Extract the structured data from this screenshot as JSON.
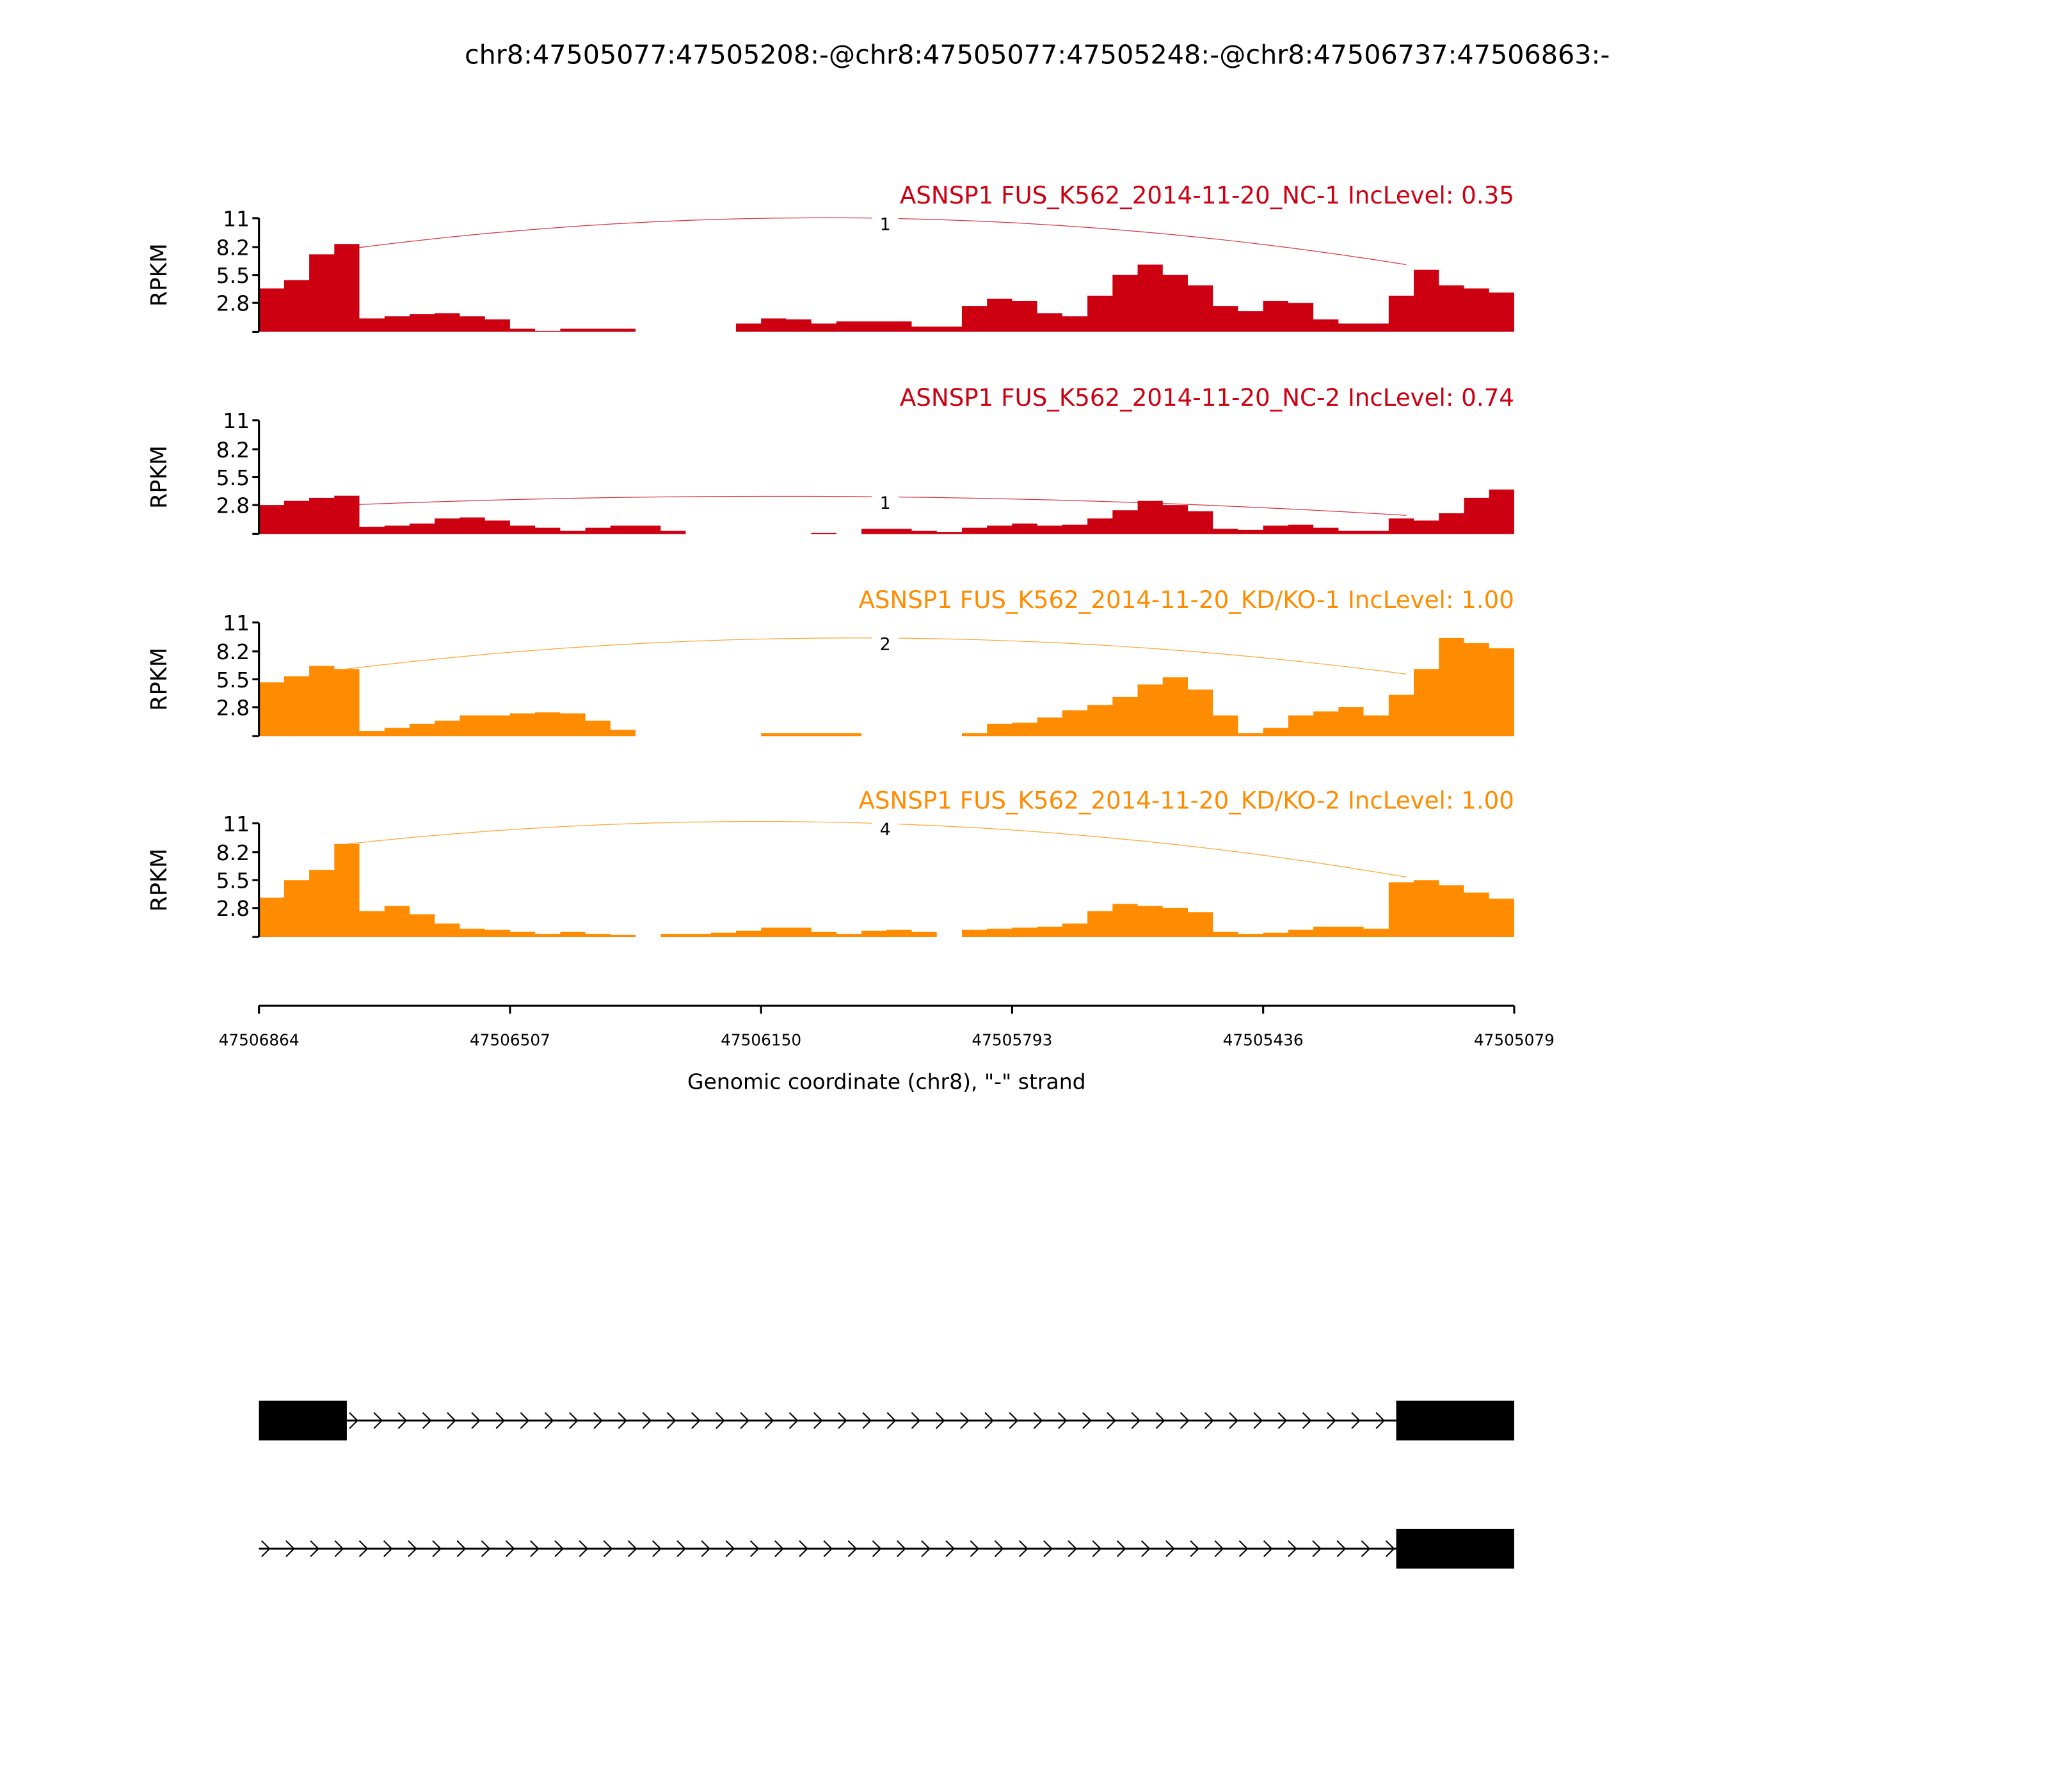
{
  "title": "chr8:47505077:47505208:-@chr8:47505077:47505248:-@chr8:47506737:47506863:-",
  "chart_data": {
    "type": "area",
    "title": "chr8:47505077:47505208:-@chr8:47505077:47505248:-@chr8:47506737:47506863:-",
    "xlabel": "Genomic coordinate (chr8), \"-\" strand",
    "x_range": [
      47506864,
      47505079
    ],
    "x_ticks": [
      "47506864",
      "47506507",
      "47506150",
      "47505793",
      "47505436",
      "47505079"
    ],
    "bin_size_bp": 35.7,
    "ylabel": "RPKM",
    "ylim": [
      0,
      11
    ],
    "y_ticks": [
      "11",
      "8.2",
      "5.5",
      "2.8"
    ],
    "y_tick_values": [
      11,
      8.2,
      5.5,
      2.8
    ],
    "tracks": [
      {
        "label": "ASNSP1 FUS_K562_2014-11-20_NC-1 IncLevel: 0.35",
        "color": "#cc0011",
        "junction_counts": [
          "1"
        ],
        "junction_ends_bin": [
          45.2
        ],
        "junction_heights": [
          [
            8,
            11,
            6.5
          ]
        ],
        "values": [
          4.2,
          5,
          7.5,
          8.5,
          1.3,
          1.5,
          1.7,
          1.8,
          1.5,
          1.2,
          0.3,
          0.1,
          0.3,
          0.3,
          0.3,
          0,
          0,
          0,
          0,
          0.8,
          1.3,
          1.2,
          0.8,
          1.0,
          1.0,
          1.0,
          0.5,
          0.5,
          2.5,
          3.2,
          3.0,
          1.8,
          1.5,
          3.5,
          5.5,
          6.5,
          5.5,
          4.5,
          2.5,
          2.0,
          3.0,
          2.8,
          1.2,
          0.8,
          0.8,
          3.5,
          6,
          4.5,
          4.2,
          3.8
        ]
      },
      {
        "label": "ASNSP1 FUS_K562_2014-11-20_NC-2 IncLevel: 0.74",
        "color": "#cc0011",
        "junction_counts": [
          "1"
        ],
        "junction_ends_bin": [
          45.2
        ],
        "junction_heights": [
          [
            2.8,
            3.6,
            1.8
          ]
        ],
        "values": [
          2.8,
          3.2,
          3.5,
          3.7,
          0.7,
          0.8,
          1,
          1.5,
          1.6,
          1.3,
          0.8,
          0.6,
          0.3,
          0.6,
          0.8,
          0.8,
          0.3,
          0,
          0,
          0,
          0,
          0,
          0.1,
          0,
          0.5,
          0.5,
          0.3,
          0.2,
          0.6,
          0.8,
          1,
          0.8,
          0.9,
          1.5,
          2.3,
          3.2,
          2.8,
          2.2,
          0.5,
          0.4,
          0.8,
          0.9,
          0.6,
          0.3,
          0.3,
          1.5,
          1.3,
          2,
          3.5,
          4.3
        ]
      },
      {
        "label": "ASNSP1 FUS_K562_2014-11-20_KD/KO-1 IncLevel: 1.00",
        "color": "#ff8c00",
        "junction_counts": [
          "2"
        ],
        "junction_ends_bin": [
          45.2
        ],
        "junction_heights": [
          [
            6.5,
            9.5,
            6.0
          ]
        ],
        "values": [
          5.2,
          5.8,
          6.8,
          6.5,
          0.5,
          0.8,
          1.2,
          1.5,
          2,
          2,
          2.2,
          2.3,
          2.2,
          1.5,
          0.6,
          0,
          0,
          0,
          0,
          0,
          0.3,
          0.3,
          0.3,
          0.3,
          0,
          0,
          0,
          0,
          0.3,
          1.2,
          1.3,
          1.8,
          2.5,
          3,
          3.8,
          5,
          5.7,
          4.5,
          2,
          0.3,
          0.8,
          2,
          2.4,
          2.8,
          2,
          4,
          6.5,
          9.5,
          9,
          8.5
        ]
      },
      {
        "label": "ASNSP1 FUS_K562_2014-11-20_KD/KO-2 IncLevel: 1.00",
        "color": "#ff8c00",
        "junction_counts": [
          "4"
        ],
        "junction_ends_bin": [
          45.2
        ],
        "junction_heights": [
          [
            9,
            11,
            5.8
          ]
        ],
        "values": [
          3.8,
          5.5,
          6.5,
          9,
          2.5,
          3,
          2.2,
          1.3,
          0.8,
          0.7,
          0.5,
          0.3,
          0.5,
          0.3,
          0.2,
          0,
          0.3,
          0.3,
          0.4,
          0.6,
          0.9,
          0.9,
          0.5,
          0.3,
          0.6,
          0.7,
          0.5,
          0,
          0.7,
          0.8,
          0.9,
          1,
          1.3,
          2.5,
          3.2,
          3.0,
          2.8,
          2.4,
          0.5,
          0.3,
          0.4,
          0.7,
          1.0,
          1.0,
          0.8,
          5.3,
          5.5,
          5,
          4.3,
          3.7
        ]
      }
    ],
    "gene_models": [
      {
        "exons_bins": [
          [
            0,
            3.5
          ],
          [
            45.3,
            50
          ]
        ],
        "intron_bins": [
          3.5,
          45.3
        ]
      },
      {
        "exons_bins": [
          [
            45.3,
            50
          ]
        ],
        "intron_bins": [
          0,
          45.3
        ]
      }
    ]
  }
}
